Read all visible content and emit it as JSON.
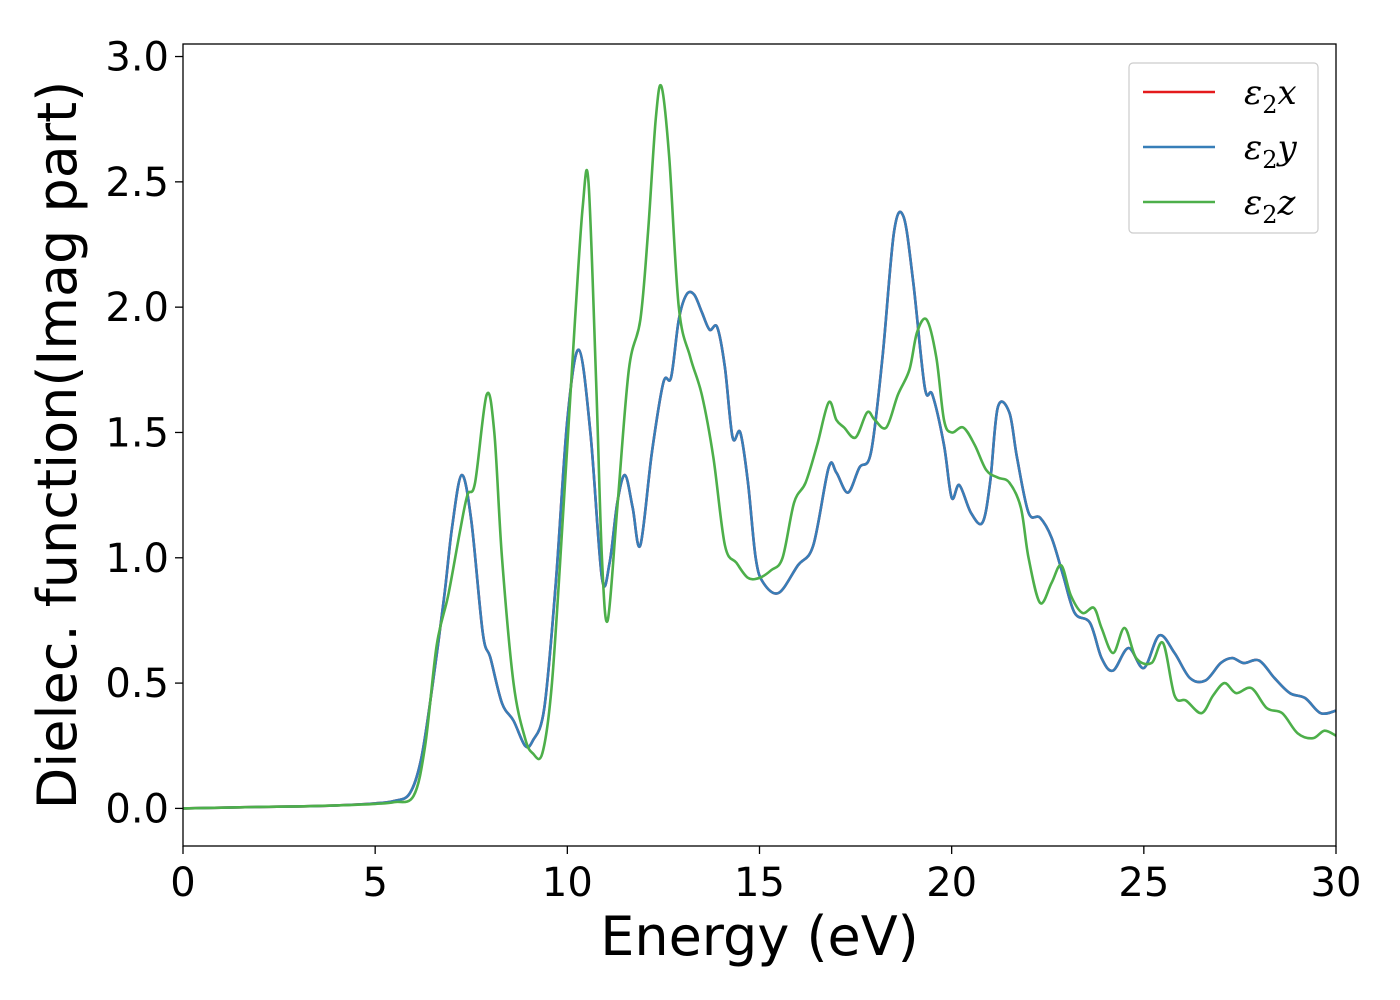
{
  "chart_data": {
    "type": "line",
    "xlabel": "Energy (eV)",
    "ylabel": "Dielec. function(Imag part)",
    "xlim": [
      0,
      30
    ],
    "ylim": [
      -0.15,
      3.05
    ],
    "xticks": [
      0,
      5,
      10,
      15,
      20,
      25,
      30
    ],
    "xtick_labels": [
      "0",
      "5",
      "10",
      "15",
      "20",
      "25",
      "30"
    ],
    "yticks": [
      0.0,
      0.5,
      1.0,
      1.5,
      2.0,
      2.5,
      3.0
    ],
    "ytick_labels": [
      "0.0",
      "0.5",
      "1.0",
      "1.5",
      "2.0",
      "2.5",
      "3.0"
    ],
    "grid": false,
    "legend_position": "top-right",
    "series": [
      {
        "name": "ε2x",
        "legend_base": "ε",
        "legend_sub": "2",
        "legend_suffix": "x",
        "color": "#e41a1c",
        "x": [
          0,
          1,
          2,
          3,
          4,
          5,
          5.5,
          5.9,
          6.2,
          6.5,
          6.8,
          7.0,
          7.25,
          7.5,
          7.8,
          8.0,
          8.3,
          8.6,
          8.9,
          9.1,
          9.4,
          9.7,
          10.0,
          10.3,
          10.6,
          10.9,
          11.1,
          11.3,
          11.5,
          11.7,
          11.9,
          12.2,
          12.5,
          12.7,
          12.9,
          13.1,
          13.3,
          13.5,
          13.7,
          13.9,
          14.1,
          14.3,
          14.5,
          14.7,
          14.9,
          15.1,
          15.5,
          16.0,
          16.4,
          16.8,
          17.0,
          17.3,
          17.6,
          17.9,
          18.2,
          18.5,
          18.75,
          19.0,
          19.3,
          19.5,
          19.8,
          20.0,
          20.2,
          20.5,
          20.8,
          21.0,
          21.2,
          21.5,
          21.7,
          22.0,
          22.3,
          22.6,
          22.9,
          23.2,
          23.6,
          23.9,
          24.2,
          24.6,
          25.0,
          25.4,
          25.8,
          26.2,
          26.6,
          27.0,
          27.3,
          27.6,
          28.0,
          28.4,
          28.8,
          29.2,
          29.6,
          30.0
        ],
        "values": [
          0.0,
          0.003,
          0.006,
          0.008,
          0.012,
          0.02,
          0.03,
          0.06,
          0.2,
          0.5,
          0.85,
          1.12,
          1.33,
          1.15,
          0.7,
          0.6,
          0.42,
          0.35,
          0.25,
          0.27,
          0.4,
          0.9,
          1.55,
          1.83,
          1.5,
          0.92,
          0.98,
          1.22,
          1.33,
          1.2,
          1.05,
          1.42,
          1.7,
          1.72,
          1.95,
          2.05,
          2.05,
          1.98,
          1.91,
          1.92,
          1.76,
          1.48,
          1.5,
          1.3,
          1.0,
          0.9,
          0.86,
          0.97,
          1.05,
          1.36,
          1.34,
          1.26,
          1.36,
          1.42,
          1.8,
          2.3,
          2.36,
          2.1,
          1.68,
          1.65,
          1.45,
          1.24,
          1.29,
          1.18,
          1.14,
          1.3,
          1.6,
          1.58,
          1.4,
          1.18,
          1.16,
          1.08,
          0.93,
          0.78,
          0.74,
          0.6,
          0.55,
          0.64,
          0.56,
          0.69,
          0.62,
          0.52,
          0.51,
          0.58,
          0.6,
          0.58,
          0.59,
          0.52,
          0.46,
          0.44,
          0.38,
          0.39
        ]
      },
      {
        "name": "ε2y",
        "legend_base": "ε",
        "legend_sub": "2",
        "legend_suffix": "y",
        "color": "#377eb8",
        "x": [
          0,
          1,
          2,
          3,
          4,
          5,
          5.5,
          5.9,
          6.2,
          6.5,
          6.8,
          7.0,
          7.25,
          7.5,
          7.8,
          8.0,
          8.3,
          8.6,
          8.9,
          9.1,
          9.4,
          9.7,
          10.0,
          10.3,
          10.6,
          10.9,
          11.1,
          11.3,
          11.5,
          11.7,
          11.9,
          12.2,
          12.5,
          12.7,
          12.9,
          13.1,
          13.3,
          13.5,
          13.7,
          13.9,
          14.1,
          14.3,
          14.5,
          14.7,
          14.9,
          15.1,
          15.5,
          16.0,
          16.4,
          16.8,
          17.0,
          17.3,
          17.6,
          17.9,
          18.2,
          18.5,
          18.75,
          19.0,
          19.3,
          19.5,
          19.8,
          20.0,
          20.2,
          20.5,
          20.8,
          21.0,
          21.2,
          21.5,
          21.7,
          22.0,
          22.3,
          22.6,
          22.9,
          23.2,
          23.6,
          23.9,
          24.2,
          24.6,
          25.0,
          25.4,
          25.8,
          26.2,
          26.6,
          27.0,
          27.3,
          27.6,
          28.0,
          28.4,
          28.8,
          29.2,
          29.6,
          30.0
        ],
        "values": [
          0.0,
          0.003,
          0.006,
          0.008,
          0.012,
          0.02,
          0.03,
          0.06,
          0.2,
          0.5,
          0.85,
          1.12,
          1.33,
          1.15,
          0.7,
          0.6,
          0.42,
          0.35,
          0.25,
          0.27,
          0.4,
          0.9,
          1.55,
          1.83,
          1.5,
          0.92,
          0.98,
          1.22,
          1.33,
          1.2,
          1.05,
          1.42,
          1.7,
          1.72,
          1.95,
          2.05,
          2.05,
          1.98,
          1.91,
          1.92,
          1.76,
          1.48,
          1.5,
          1.3,
          1.0,
          0.9,
          0.86,
          0.97,
          1.05,
          1.36,
          1.34,
          1.26,
          1.36,
          1.42,
          1.8,
          2.3,
          2.36,
          2.1,
          1.68,
          1.65,
          1.45,
          1.24,
          1.29,
          1.18,
          1.14,
          1.3,
          1.6,
          1.58,
          1.4,
          1.18,
          1.16,
          1.08,
          0.93,
          0.78,
          0.74,
          0.6,
          0.55,
          0.64,
          0.56,
          0.69,
          0.62,
          0.52,
          0.51,
          0.58,
          0.6,
          0.58,
          0.59,
          0.52,
          0.46,
          0.44,
          0.38,
          0.39
        ]
      },
      {
        "name": "ε2z",
        "legend_base": "ε",
        "legend_sub": "2",
        "legend_suffix": "z",
        "color": "#4daf4a",
        "x": [
          0,
          1,
          2,
          3,
          4,
          5,
          5.5,
          6.0,
          6.3,
          6.6,
          6.9,
          7.2,
          7.4,
          7.6,
          7.9,
          8.1,
          8.3,
          8.6,
          8.9,
          9.1,
          9.35,
          9.6,
          9.9,
          10.2,
          10.4,
          10.55,
          10.75,
          10.9,
          11.05,
          11.3,
          11.6,
          11.9,
          12.1,
          12.3,
          12.45,
          12.65,
          12.9,
          13.2,
          13.5,
          13.8,
          14.1,
          14.4,
          14.7,
          15.0,
          15.3,
          15.6,
          15.9,
          16.2,
          16.5,
          16.8,
          17.0,
          17.2,
          17.5,
          17.8,
          18.0,
          18.3,
          18.6,
          18.9,
          19.1,
          19.35,
          19.6,
          19.8,
          20.0,
          20.3,
          20.6,
          20.9,
          21.2,
          21.5,
          21.8,
          22.0,
          22.3,
          22.6,
          22.85,
          23.1,
          23.4,
          23.7,
          23.9,
          24.2,
          24.5,
          24.8,
          25.2,
          25.5,
          25.8,
          26.1,
          26.5,
          26.8,
          27.1,
          27.4,
          27.8,
          28.2,
          28.6,
          29.0,
          29.4,
          29.7,
          30.0
        ],
        "values": [
          0.0,
          0.003,
          0.006,
          0.008,
          0.012,
          0.018,
          0.025,
          0.05,
          0.25,
          0.65,
          0.85,
          1.1,
          1.25,
          1.3,
          1.65,
          1.5,
          1.0,
          0.5,
          0.28,
          0.22,
          0.22,
          0.5,
          1.2,
          1.95,
          2.4,
          2.5,
          1.7,
          1.0,
          0.75,
          1.2,
          1.75,
          1.95,
          2.3,
          2.75,
          2.88,
          2.6,
          2.0,
          1.8,
          1.65,
          1.4,
          1.05,
          0.98,
          0.92,
          0.92,
          0.95,
          1.0,
          1.22,
          1.3,
          1.45,
          1.62,
          1.55,
          1.52,
          1.48,
          1.58,
          1.55,
          1.52,
          1.65,
          1.75,
          1.9,
          1.95,
          1.8,
          1.55,
          1.5,
          1.52,
          1.45,
          1.35,
          1.32,
          1.3,
          1.2,
          1.0,
          0.82,
          0.9,
          0.97,
          0.85,
          0.78,
          0.8,
          0.72,
          0.62,
          0.72,
          0.6,
          0.58,
          0.66,
          0.45,
          0.43,
          0.38,
          0.45,
          0.5,
          0.46,
          0.48,
          0.4,
          0.38,
          0.3,
          0.28,
          0.31,
          0.29
        ]
      }
    ]
  }
}
